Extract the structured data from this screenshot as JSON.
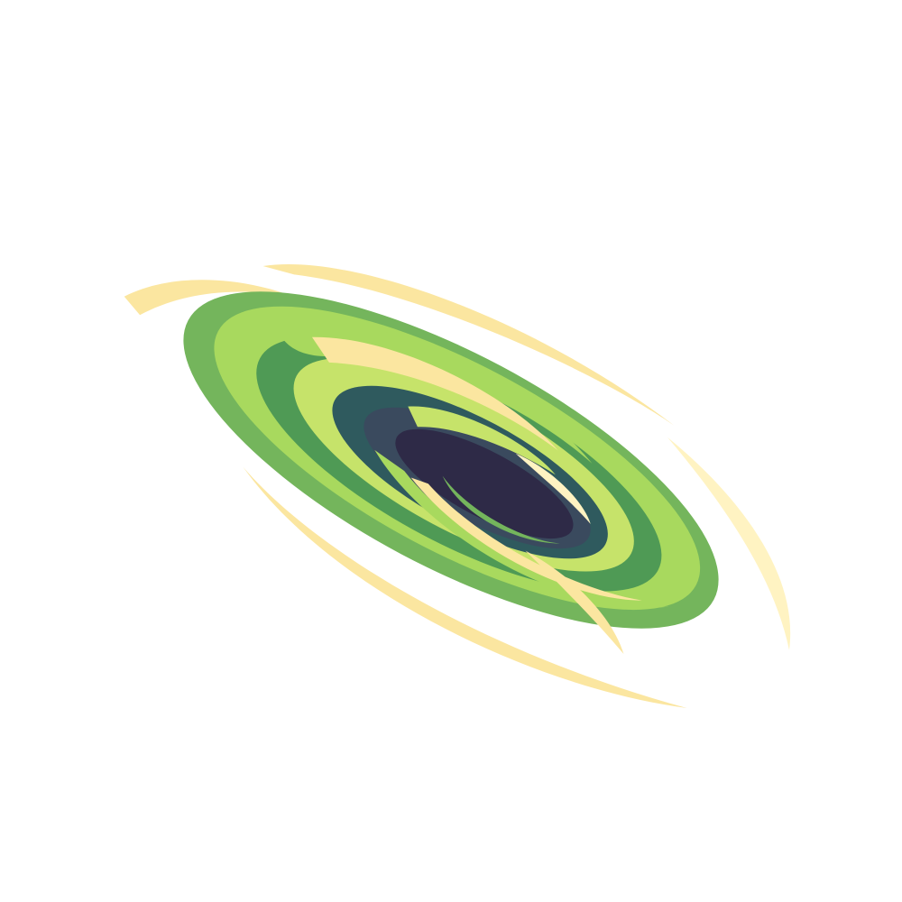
{
  "sprite": {
    "icon": "green-vortex-portal",
    "colors": {
      "background": "#ffffff",
      "core_dark": "#2e2a47",
      "core_mid": "#3a4a5e",
      "deep_teal": "#2f5a5e",
      "green_dark": "#4f9a55",
      "green_mid": "#74b55c",
      "green_light": "#a8d95e",
      "lime": "#c6e36a",
      "cream": "#fbe6a0",
      "cream_light": "#fff3c2"
    }
  }
}
